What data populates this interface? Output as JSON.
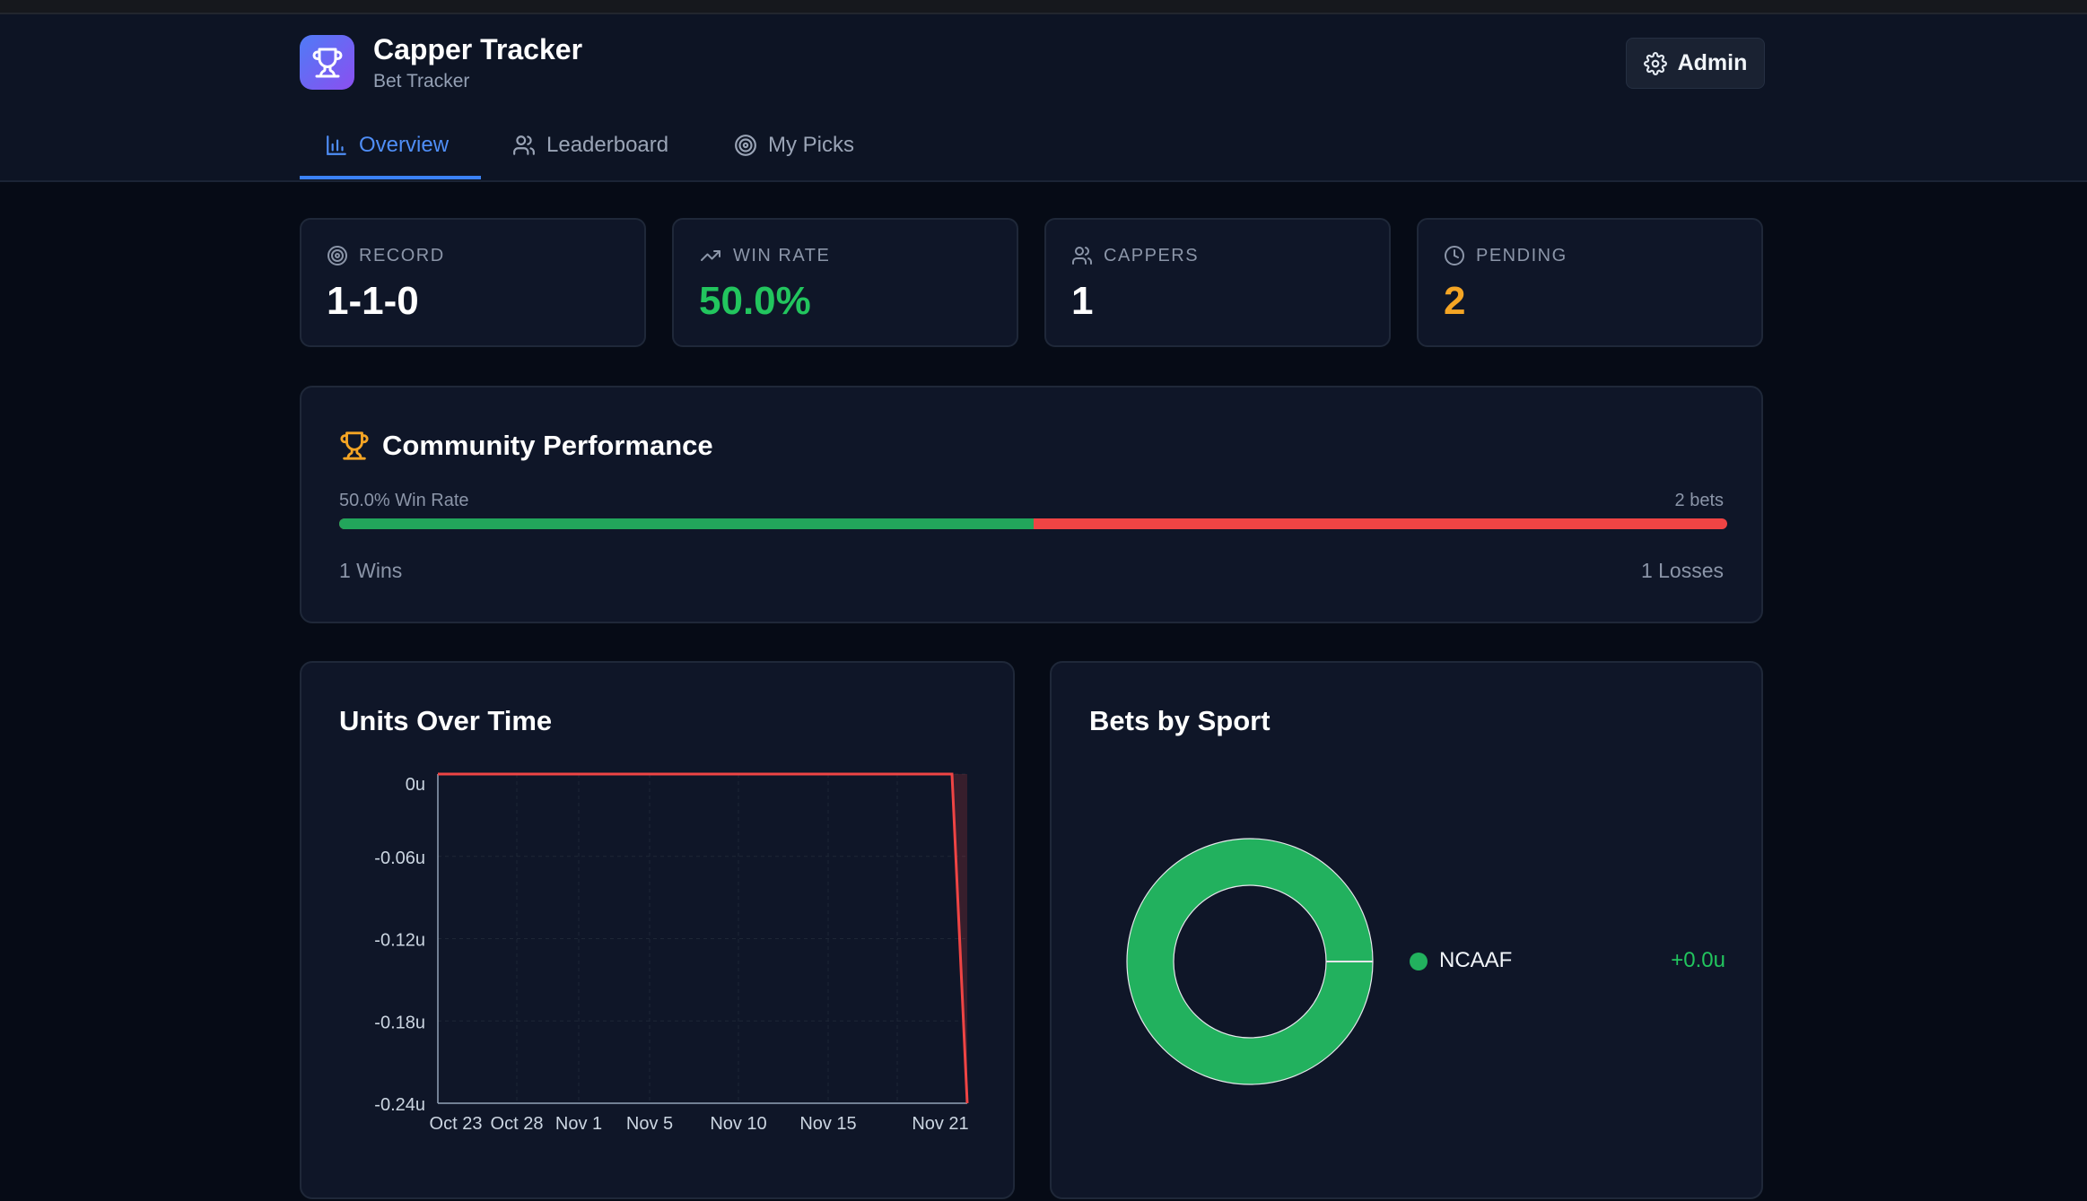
{
  "app": {
    "title": "Capper Tracker",
    "subtitle": "Bet Tracker",
    "admin_label": "Admin"
  },
  "tabs": [
    {
      "label": "Overview",
      "icon": "bar-chart-icon",
      "active": true
    },
    {
      "label": "Leaderboard",
      "icon": "users-icon",
      "active": false
    },
    {
      "label": "My Picks",
      "icon": "target-icon",
      "active": false
    }
  ],
  "stats": [
    {
      "label": "RECORD",
      "value": "1-1-0",
      "icon": "target-icon",
      "color": "#ffffff"
    },
    {
      "label": "WIN RATE",
      "value": "50.0%",
      "icon": "trending-up-icon",
      "color": "#22c55e"
    },
    {
      "label": "CAPPERS",
      "value": "1",
      "icon": "users-icon",
      "color": "#ffffff"
    },
    {
      "label": "PENDING",
      "value": "2",
      "icon": "clock-icon",
      "color": "#f5a524"
    }
  ],
  "community": {
    "title": "Community Performance",
    "win_rate_label": "50.0% Win Rate",
    "bets_label": "2 bets",
    "wins_label": "1 Wins",
    "losses_label": "1 Losses",
    "win_fraction": 0.5,
    "colors": {
      "win": "#22a55b",
      "loss": "#ef4444"
    }
  },
  "chart_data": [
    {
      "type": "line",
      "title": "Units Over Time",
      "x_ticks": [
        "Oct 23",
        "Oct 28",
        "Nov 1",
        "Nov 5",
        "Nov 10",
        "Nov 15",
        "Nov 21"
      ],
      "y_ticks": [
        "0u",
        "-0.06u",
        "-0.12u",
        "-0.18u",
        "-0.24u"
      ],
      "ylim": [
        -0.24,
        0
      ],
      "x": [
        "Oct 23",
        "Nov 20",
        "Nov 21"
      ],
      "y": [
        0,
        0,
        -0.24
      ],
      "grid": true,
      "color": "#ef4444"
    },
    {
      "type": "pie",
      "title": "Bets by Sport",
      "labels": [
        "NCAAF"
      ],
      "values": [
        1
      ],
      "value_labels": [
        "+0.0u"
      ],
      "colors": [
        "#22b15e"
      ],
      "legend": "right"
    }
  ]
}
